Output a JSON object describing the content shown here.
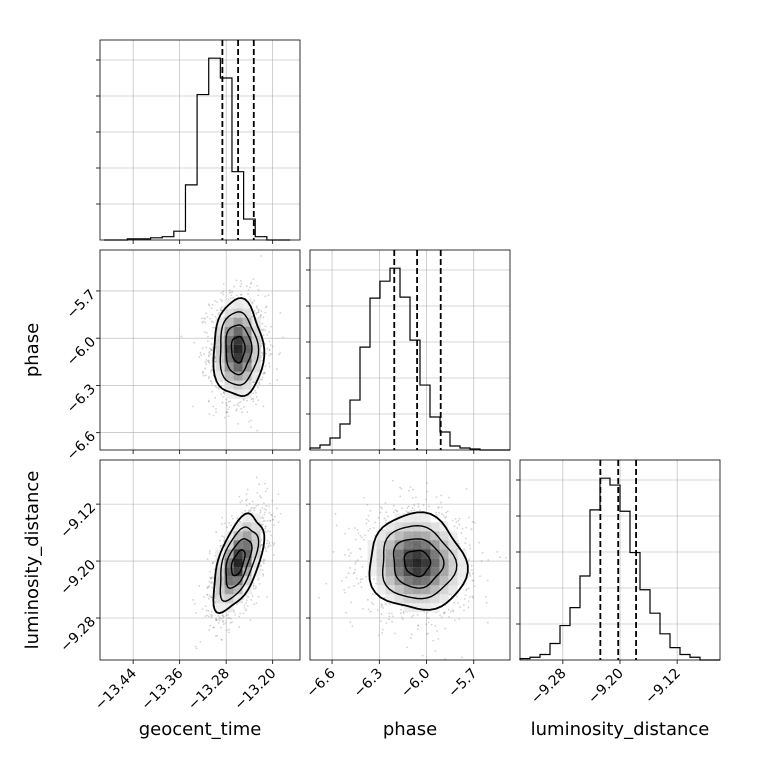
{
  "chart_data": {
    "type": "corner",
    "parameters": [
      "geocent_time",
      "phase",
      "luminosity_distance"
    ],
    "grid": true,
    "colors": {
      "line": "#000000",
      "grid": "#b0b0b0",
      "points": "#7f7f7f"
    },
    "panels": [
      {
        "name": "hist-geocent_time",
        "kind": "histogram",
        "row": 0,
        "col": 0,
        "xlim": [
          -13.497,
          -13.153
        ],
        "bins": [
          -13.48,
          -13.46,
          -13.44,
          -13.42,
          -13.4,
          -13.38,
          -13.36,
          -13.34,
          -13.32,
          -13.3,
          -13.28,
          -13.26,
          -13.24,
          -13.22,
          -13.2,
          -13.18
        ],
        "bin_edges_start": -13.49,
        "bin_width": 0.02,
        "counts": [
          0,
          0,
          1,
          1,
          2,
          3,
          8,
          50,
          132,
          165,
          147,
          62,
          19,
          3,
          0,
          0
        ],
        "quantiles": [
          -13.2865,
          -13.2595,
          -13.2325
        ]
      },
      {
        "name": "hist-phase",
        "kind": "histogram",
        "row": 1,
        "col": 1,
        "xlim": [
          -6.74,
          -5.47
        ],
        "bin_edges_start": -6.74,
        "bin_width": 0.0635,
        "counts": [
          2,
          5,
          12,
          26,
          50,
          103,
          152,
          169,
          182,
          153,
          110,
          65,
          33,
          18,
          4,
          2,
          1,
          0,
          0,
          0
        ],
        "quantiles": [
          -6.205,
          -6.06,
          -5.91
        ]
      },
      {
        "name": "hist-luminosity_distance",
        "kind": "histogram",
        "row": 2,
        "col": 2,
        "xlim": [
          -9.34,
          -9.06
        ],
        "bin_edges_start": -9.34,
        "bin_width": 0.014,
        "counts": [
          1,
          2,
          4,
          12,
          25,
          38,
          61,
          109,
          132,
          127,
          108,
          78,
          51,
          34,
          19,
          9,
          4,
          2,
          0,
          0
        ],
        "quantiles": [
          -9.2275,
          -9.2025,
          -9.1775
        ]
      },
      {
        "name": "2d-phase-vs-geocent_time",
        "kind": "density2d",
        "row": 1,
        "col": 0,
        "x": "geocent_time",
        "y": "phase",
        "xlim": [
          -13.497,
          -13.153
        ],
        "ylim": [
          -6.71,
          -5.44
        ],
        "center": [
          -13.2595,
          -6.07
        ],
        "sd": [
          0.021,
          0.15
        ],
        "corr": 0.0
      },
      {
        "name": "2d-luminosity_distance-vs-geocent_time",
        "kind": "density2d",
        "row": 2,
        "col": 0,
        "x": "geocent_time",
        "y": "luminosity_distance",
        "xlim": [
          -13.497,
          -13.153
        ],
        "ylim": [
          -9.339,
          -9.058
        ],
        "center": [
          -13.2595,
          -9.2025
        ],
        "sd": [
          0.021,
          0.033
        ],
        "corr": 0.55
      },
      {
        "name": "2d-luminosity_distance-vs-phase",
        "kind": "density2d",
        "row": 2,
        "col": 1,
        "x": "phase",
        "y": "luminosity_distance",
        "xlim": [
          -6.74,
          -5.47
        ],
        "ylim": [
          -9.339,
          -9.058
        ],
        "center": [
          -6.06,
          -9.2025
        ],
        "sd": [
          0.15,
          0.033
        ],
        "corr": -0.05
      }
    ],
    "x_tick_labels": [
      [
        "−13.44",
        "−13.36",
        "−13.28",
        "−13.20"
      ],
      [
        "−6.6",
        "−6.3",
        "−6.0",
        "−5.7"
      ],
      [
        "−9.28",
        "−9.20",
        "−9.12"
      ]
    ],
    "x_tick_values": [
      [
        -13.44,
        -13.36,
        -13.28,
        -13.2
      ],
      [
        -6.6,
        -6.3,
        -6.0,
        -5.7
      ],
      [
        -9.28,
        -9.2,
        -9.12
      ]
    ],
    "y_tick_labels": {
      "phase": [
        "−5.7",
        "−6.0",
        "−6.3",
        "−6.6"
      ],
      "luminosity_distance": [
        "−9.12",
        "−9.20",
        "−9.28"
      ]
    },
    "y_tick_values": {
      "phase": [
        -5.7,
        -6.0,
        -6.3,
        -6.6
      ],
      "luminosity_distance": [
        -9.12,
        -9.2,
        -9.28
      ]
    },
    "xlabels": [
      "geocent_time",
      "phase",
      "luminosity_distance"
    ],
    "ylabels": [
      "",
      "phase",
      "luminosity_distance"
    ]
  }
}
